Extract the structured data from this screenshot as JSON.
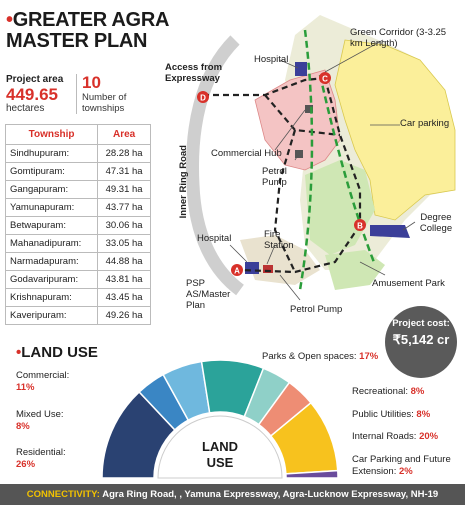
{
  "title_line1": "GREATER AGRA",
  "title_line2": "MASTER PLAN",
  "project_area": {
    "label": "Project area",
    "value": "449.65",
    "unit": "hectares"
  },
  "townships_count": {
    "value": "10",
    "label": "Number of townships"
  },
  "table": {
    "headers": [
      "Township",
      "Area"
    ],
    "rows": [
      [
        "Sindhupuram:",
        "28.28 ha"
      ],
      [
        "Gomtipuram:",
        "47.31 ha"
      ],
      [
        "Gangapuram:",
        "49.31 ha"
      ],
      [
        "Yamunapuram:",
        "43.77 ha"
      ],
      [
        "Betwapuram:",
        "30.06 ha"
      ],
      [
        "Mahanadipuram:",
        "33.05 ha"
      ],
      [
        "Narmadapuram:",
        "44.88 ha"
      ],
      [
        "Godavaripuram:",
        "43.81 ha"
      ],
      [
        "Krishnapuram:",
        "43.45 ha"
      ],
      [
        "Kaveripuram:",
        "49.26 ha"
      ]
    ]
  },
  "map": {
    "access": "Access from Expressway",
    "hospital_top": "Hospital",
    "green_corridor": "Green Corridor (3-3.25 km Length)",
    "car_parking": "Car parking",
    "commercial_hub": "Commercial Hub",
    "petrol_pump_1": "Petrol Pump",
    "inner_ring_road": "Inner Ring Road",
    "degree_college": "Degree College",
    "hospital_bottom": "Hospital",
    "fire_station": "Fire Station",
    "amusement_park": "Amusement Park",
    "psp": "PSP AS/Master Plan",
    "petrol_pump_2": "Petrol Pump",
    "markers": [
      "A",
      "B",
      "C",
      "D"
    ]
  },
  "cost": {
    "label": "Project cost:",
    "value": "₹5,142 cr"
  },
  "land_use": {
    "title": "LAND USE",
    "center_label_1": "LAND",
    "center_label_2": "USE",
    "items": [
      {
        "name": "Residential:",
        "pct": "26%",
        "value": 26,
        "color": "#2a4272"
      },
      {
        "name": "Mixed Use:",
        "pct": "8%",
        "value": 8,
        "color": "#3a86c4"
      },
      {
        "name": "Commercial:",
        "pct": "11%",
        "value": 11,
        "color": "#6fb8de"
      },
      {
        "name": "Parks & Open spaces:",
        "pct": "17%",
        "value": 17,
        "color": "#2ba39a"
      },
      {
        "name": "Recreational:",
        "pct": "8%",
        "value": 8,
        "color": "#8fd0c8"
      },
      {
        "name": "Public Utilities:",
        "pct": "8%",
        "value": 8,
        "color": "#ee8d74"
      },
      {
        "name": "Internal Roads:",
        "pct": "20%",
        "value": 20,
        "color": "#f7c21e"
      },
      {
        "name": "Car Parking and Future Extension:",
        "pct": "2%",
        "value": 2,
        "color": "#6a4c9c"
      }
    ]
  },
  "connectivity": {
    "key": "CONNECTIVITY:",
    "value": "Agra Ring Road, , Yamuna Expressway, Agra-Lucknow Expressway, NH-19"
  }
}
